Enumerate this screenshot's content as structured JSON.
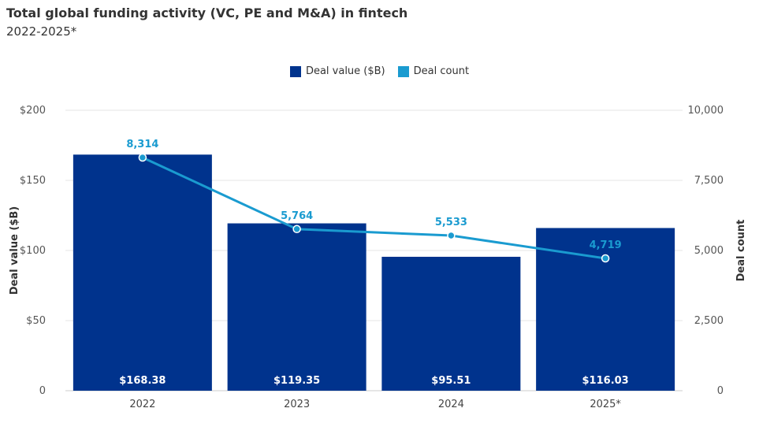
{
  "title": "Total global funding activity (VC, PE and M&A) in fintech",
  "subtitle": "2022-2025*",
  "legend": [
    {
      "label": "Deal value ($B)",
      "color": "#00338d"
    },
    {
      "label": "Deal count",
      "color": "#1a9bd0"
    }
  ],
  "chart_data": {
    "type": "bar",
    "categories": [
      "2022",
      "2023",
      "2024",
      "2025*"
    ],
    "series": [
      {
        "name": "Deal value ($B)",
        "type": "bar",
        "axis": "left",
        "values": [
          168.38,
          119.35,
          95.51,
          116.03
        ],
        "labels": [
          "$168.38",
          "$119.35",
          "$95.51",
          "$116.03"
        ],
        "color": "#00338d"
      },
      {
        "name": "Deal count",
        "type": "line",
        "axis": "right",
        "values": [
          8314,
          5764,
          5533,
          4719
        ],
        "labels": [
          "8,314",
          "5,764",
          "5,533",
          "4,719"
        ],
        "color": "#1a9bd0"
      }
    ],
    "ylabel": "Deal value ($B)",
    "y2label": "Deal count",
    "ylim": [
      0,
      200
    ],
    "y2lim": [
      0,
      10000
    ],
    "yticks": [
      "0",
      "$50",
      "$100",
      "$150",
      "$200"
    ],
    "y2ticks": [
      "0",
      "2,500",
      "5,000",
      "7,500",
      "10,000"
    ],
    "grid": true,
    "legend_position": "top"
  }
}
